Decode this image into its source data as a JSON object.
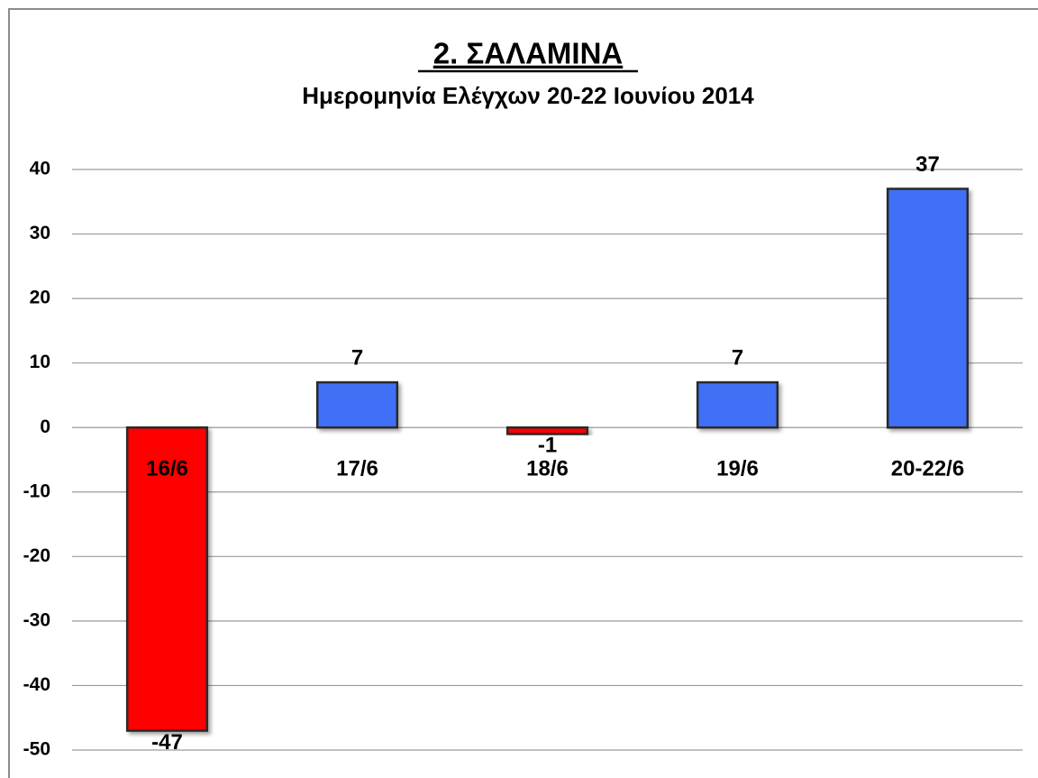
{
  "chart_data": {
    "type": "bar",
    "title": "2. ΣΑΛΑΜΙΝΑ",
    "subtitle": "Ημερομηνία Ελέγχων 20-22 Ιουνίου 2014",
    "categories": [
      "16/6",
      "17/6",
      "18/6",
      "19/6",
      "20-22/6"
    ],
    "values": [
      -47,
      7,
      -1,
      7,
      37
    ],
    "colors": [
      "#ff0000",
      "#3f6ff5",
      "#ff0000",
      "#3f6ff5",
      "#3f6ff5"
    ],
    "ylim": [
      -50,
      40
    ],
    "yticks": [
      -50,
      -40,
      -30,
      -20,
      -10,
      0,
      10,
      20,
      30,
      40
    ],
    "grid": true
  }
}
